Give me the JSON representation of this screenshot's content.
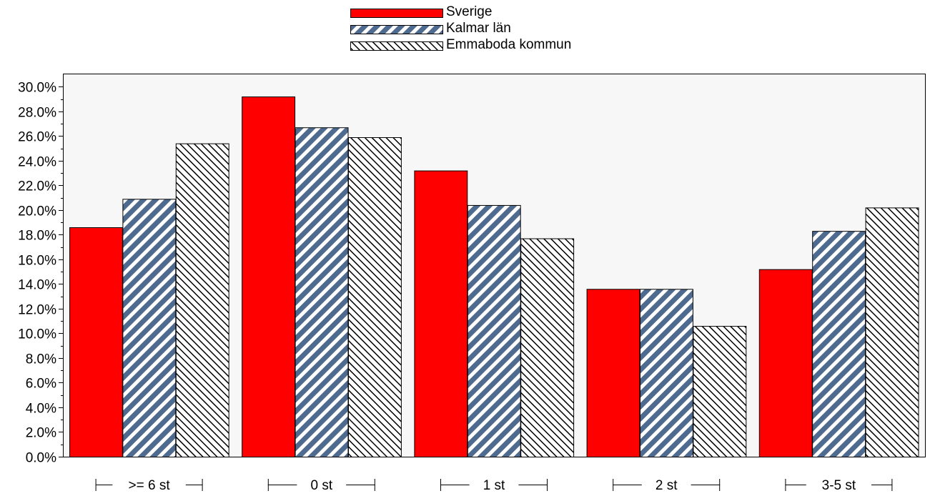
{
  "chart_data": {
    "type": "bar",
    "categories": [
      ">= 6 st",
      "0 st",
      "1 st",
      "2 st",
      "3-5 st"
    ],
    "series": [
      {
        "name": "Sverige",
        "values": [
          18.6,
          29.2,
          23.2,
          13.6,
          15.2
        ],
        "color": "#ff0000",
        "pattern": "solid"
      },
      {
        "name": "Kalmar län",
        "values": [
          20.9,
          26.7,
          20.4,
          13.6,
          18.3
        ],
        "color": "#4f6a8f",
        "pattern": "diagonal-stripes"
      },
      {
        "name": "Emmaboda kommun",
        "values": [
          25.4,
          25.9,
          17.7,
          10.6,
          20.2
        ],
        "color": "#000000",
        "pattern": "back-diagonal-hatch"
      }
    ],
    "yticks": [
      "0.0%",
      "2.0%",
      "4.0%",
      "6.0%",
      "8.0%",
      "10.0%",
      "12.0%",
      "14.0%",
      "16.0%",
      "18.0%",
      "20.0%",
      "22.0%",
      "24.0%",
      "26.0%",
      "28.0%",
      "30.0%"
    ],
    "ylim": [
      0,
      31
    ],
    "grid": false,
    "legend_position": "top-center",
    "plot_background": "#f7f7f7"
  }
}
